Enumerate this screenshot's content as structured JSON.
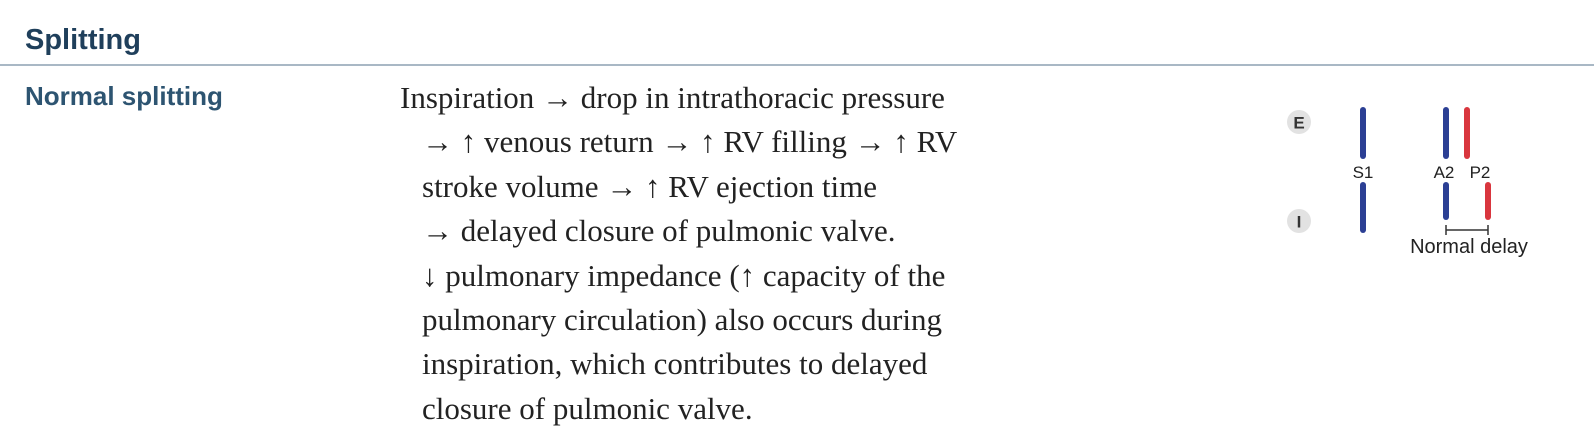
{
  "section": {
    "title": "Splitting"
  },
  "row": {
    "title": "Normal splitting",
    "lines": [
      "Inspiration → drop in intrathoracic pressure",
      "→ ↑ venous return → ↑ RV filling → ↑ RV",
      "stroke volume → ↑ RV ejection time",
      "→ delayed closure of pulmonic valve.",
      "↓ pulmonary impedance (↑ capacity of the",
      "pulmonary circulation) also occurs during",
      "inspiration, which contributes to delayed",
      "closure of pulmonic valve."
    ]
  },
  "diagram": {
    "expiration_badge": "E",
    "inspiration_badge": "I",
    "s1_label": "S1",
    "a2_label": "A2",
    "p2_label": "P2",
    "delay_label": "Normal delay",
    "colors": {
      "s1_a2": "#2b3f94",
      "p2": "#d9363e",
      "badge_fill": "#e2e2e2",
      "badge_text": "#333333"
    }
  }
}
